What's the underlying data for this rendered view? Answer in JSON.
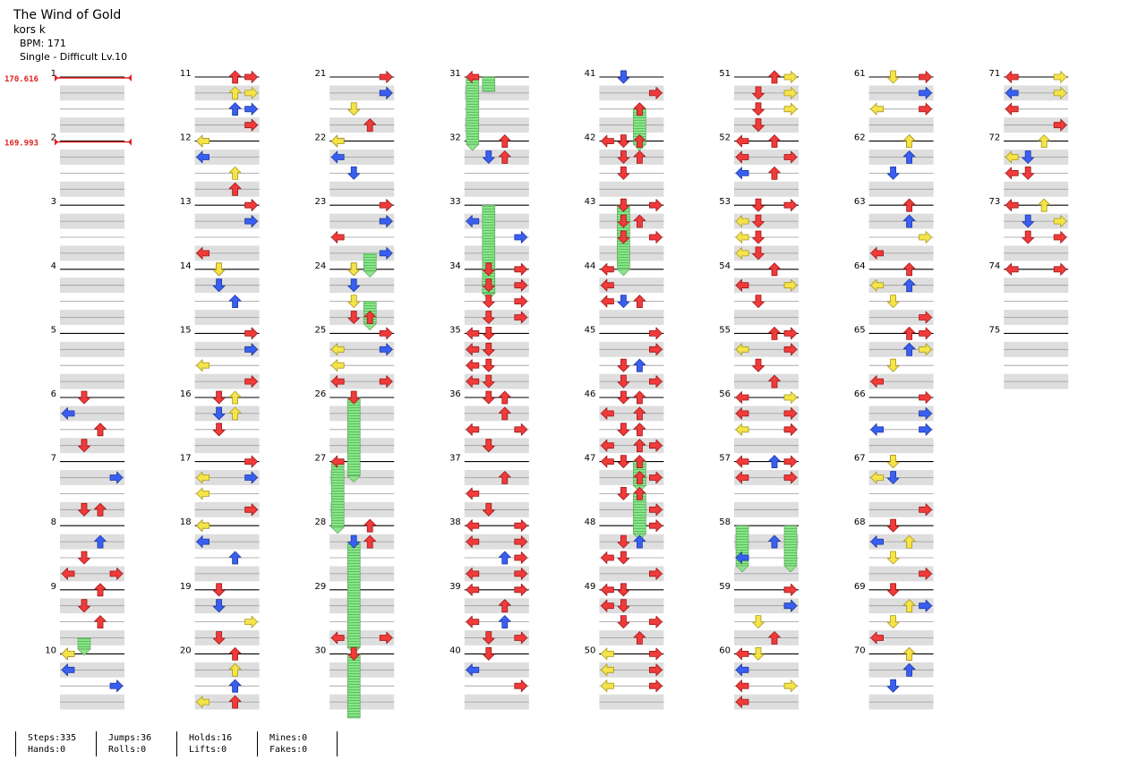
{
  "song": {
    "title": "The Wind of Gold",
    "artist": "kors k",
    "bpm_label": "BPM: 171",
    "difficulty_label": "Single - Difficult Lv.10"
  },
  "bpm_markers": [
    {
      "measure": 1,
      "label": "170.616"
    },
    {
      "measure": 2,
      "label": "169.993"
    }
  ],
  "measures": {
    "count": 75,
    "per_column": 10,
    "rows_per_measure": 4
  },
  "colors": {
    "quarter": "#ef3b3b",
    "eighth": "#3a5ff0",
    "sixteenth": "#f4e44a",
    "hold": "#7ee07e",
    "bpm": "#dd2222",
    "row_shade": "#dedede"
  },
  "notes": [
    [
      6,
      0,
      1,
      "q"
    ],
    [
      6,
      1,
      0,
      "e"
    ],
    [
      6,
      2,
      2,
      "q"
    ],
    [
      6,
      3,
      1,
      "q"
    ],
    [
      7,
      1,
      3,
      "e"
    ],
    [
      7,
      3,
      1,
      "q"
    ],
    [
      7,
      3,
      2,
      "q"
    ],
    [
      8,
      1,
      2,
      "e"
    ],
    [
      8,
      2,
      1,
      "q"
    ],
    [
      8,
      3,
      0,
      "q"
    ],
    [
      8,
      3,
      3,
      "q"
    ],
    [
      9,
      0,
      2,
      "q"
    ],
    [
      9,
      1,
      1,
      "q"
    ],
    [
      9,
      2,
      2,
      "q"
    ],
    [
      10,
      0,
      0,
      "q"
    ],
    [
      10,
      0,
      0,
      "s"
    ],
    [
      10,
      1,
      0,
      "e"
    ],
    [
      10,
      2,
      3,
      "e"
    ],
    [
      11,
      0,
      2,
      "q"
    ],
    [
      11,
      0,
      3,
      "q"
    ],
    [
      11,
      1,
      2,
      "s"
    ],
    [
      11,
      1,
      3,
      "s"
    ],
    [
      11,
      2,
      2,
      "e"
    ],
    [
      11,
      2,
      3,
      "e"
    ],
    [
      11,
      3,
      3,
      "q"
    ],
    [
      12,
      0,
      0,
      "q"
    ],
    [
      12,
      0,
      0,
      "s"
    ],
    [
      12,
      1,
      0,
      "e"
    ],
    [
      12,
      2,
      2,
      "s"
    ],
    [
      12,
      3,
      2,
      "q"
    ],
    [
      13,
      0,
      3,
      "q"
    ],
    [
      13,
      1,
      3,
      "s"
    ],
    [
      13,
      1,
      3,
      "e"
    ],
    [
      13,
      3,
      0,
      "s"
    ],
    [
      13,
      3,
      0,
      "q"
    ],
    [
      14,
      0,
      1,
      "q"
    ],
    [
      14,
      0,
      1,
      "s"
    ],
    [
      14,
      1,
      1,
      "e"
    ],
    [
      14,
      2,
      2,
      "e"
    ],
    [
      15,
      0,
      3,
      "q"
    ],
    [
      15,
      1,
      3,
      "s"
    ],
    [
      15,
      1,
      3,
      "e"
    ],
    [
      15,
      2,
      0,
      "s"
    ],
    [
      15,
      3,
      3,
      "q"
    ],
    [
      16,
      0,
      1,
      "q"
    ],
    [
      16,
      0,
      2,
      "s"
    ],
    [
      16,
      1,
      1,
      "e"
    ],
    [
      16,
      1,
      2,
      "s"
    ],
    [
      16,
      2,
      1,
      "q"
    ],
    [
      17,
      0,
      3,
      "q"
    ],
    [
      17,
      1,
      0,
      "s"
    ],
    [
      17,
      1,
      3,
      "e"
    ],
    [
      17,
      2,
      0,
      "s"
    ],
    [
      17,
      3,
      3,
      "q"
    ],
    [
      18,
      0,
      0,
      "q"
    ],
    [
      18,
      0,
      0,
      "s"
    ],
    [
      18,
      1,
      0,
      "e"
    ],
    [
      18,
      2,
      2,
      "e"
    ],
    [
      19,
      0,
      1,
      "q"
    ],
    [
      19,
      1,
      1,
      "s"
    ],
    [
      19,
      1,
      1,
      "e"
    ],
    [
      19,
      2,
      3,
      "s"
    ],
    [
      19,
      3,
      1,
      "q"
    ],
    [
      20,
      0,
      2,
      "q"
    ],
    [
      20,
      1,
      2,
      "s"
    ],
    [
      20,
      2,
      2,
      "e"
    ],
    [
      20,
      3,
      0,
      "s"
    ],
    [
      20,
      3,
      2,
      "q"
    ],
    [
      21,
      0,
      3,
      "q"
    ],
    [
      21,
      1,
      3,
      "s"
    ],
    [
      21,
      1,
      3,
      "e"
    ],
    [
      21,
      2,
      1,
      "s"
    ],
    [
      21,
      3,
      2,
      "q"
    ],
    [
      22,
      0,
      0,
      "q"
    ],
    [
      22,
      0,
      0,
      "s"
    ],
    [
      22,
      1,
      0,
      "e"
    ],
    [
      22,
      2,
      1,
      "e"
    ],
    [
      23,
      0,
      3,
      "q"
    ],
    [
      23,
      1,
      3,
      "s"
    ],
    [
      23,
      1,
      3,
      "e"
    ],
    [
      23,
      2,
      0,
      "q"
    ],
    [
      23,
      3,
      3,
      "e"
    ],
    [
      24,
      0,
      1,
      "q"
    ],
    [
      24,
      0,
      1,
      "s"
    ],
    [
      24,
      1,
      1,
      "e"
    ],
    [
      24,
      2,
      1,
      "s"
    ],
    [
      24,
      3,
      1,
      "q"
    ],
    [
      24,
      3,
      2,
      "q"
    ],
    [
      25,
      0,
      3,
      "q"
    ],
    [
      25,
      1,
      0,
      "s"
    ],
    [
      25,
      1,
      3,
      "e"
    ],
    [
      25,
      2,
      0,
      "s"
    ],
    [
      25,
      3,
      0,
      "q"
    ],
    [
      25,
      3,
      3,
      "q"
    ],
    [
      26,
      0,
      1,
      "q"
    ],
    [
      27,
      0,
      0,
      "q"
    ],
    [
      28,
      0,
      2,
      "q"
    ],
    [
      28,
      1,
      2,
      "q"
    ],
    [
      28,
      1,
      1,
      "e"
    ],
    [
      29,
      3,
      3,
      "q"
    ],
    [
      29,
      3,
      0,
      "q"
    ],
    [
      30,
      0,
      1,
      "q"
    ],
    [
      31,
      0,
      0,
      "q"
    ],
    [
      32,
      0,
      2,
      "q"
    ],
    [
      32,
      1,
      2,
      "q"
    ],
    [
      32,
      1,
      1,
      "e"
    ],
    [
      33,
      1,
      0,
      "e"
    ],
    [
      33,
      2,
      3,
      "e"
    ],
    [
      34,
      0,
      1,
      "q"
    ],
    [
      34,
      0,
      3,
      "q"
    ],
    [
      34,
      1,
      1,
      "q"
    ],
    [
      34,
      1,
      3,
      "q"
    ],
    [
      34,
      2,
      1,
      "q"
    ],
    [
      34,
      2,
      3,
      "q"
    ],
    [
      34,
      3,
      1,
      "q"
    ],
    [
      34,
      3,
      3,
      "q"
    ],
    [
      35,
      0,
      0,
      "q"
    ],
    [
      35,
      0,
      1,
      "q"
    ],
    [
      35,
      1,
      0,
      "q"
    ],
    [
      35,
      1,
      1,
      "q"
    ],
    [
      35,
      2,
      0,
      "q"
    ],
    [
      35,
      2,
      1,
      "q"
    ],
    [
      35,
      3,
      0,
      "q"
    ],
    [
      35,
      3,
      1,
      "q"
    ],
    [
      36,
      0,
      1,
      "q"
    ],
    [
      36,
      0,
      2,
      "q"
    ],
    [
      36,
      1,
      2,
      "q"
    ],
    [
      36,
      2,
      0,
      "q"
    ],
    [
      36,
      2,
      3,
      "q"
    ],
    [
      36,
      3,
      1,
      "q"
    ],
    [
      37,
      1,
      2,
      "q"
    ],
    [
      37,
      2,
      0,
      "q"
    ],
    [
      37,
      3,
      1,
      "q"
    ],
    [
      38,
      0,
      0,
      "q"
    ],
    [
      38,
      0,
      3,
      "q"
    ],
    [
      38,
      1,
      0,
      "q"
    ],
    [
      38,
      1,
      3,
      "q"
    ],
    [
      38,
      2,
      2,
      "e"
    ],
    [
      38,
      2,
      3,
      "q"
    ],
    [
      38,
      3,
      0,
      "q"
    ],
    [
      38,
      3,
      3,
      "q"
    ],
    [
      39,
      0,
      0,
      "q"
    ],
    [
      39,
      0,
      3,
      "q"
    ],
    [
      39,
      1,
      2,
      "q"
    ],
    [
      39,
      2,
      0,
      "q"
    ],
    [
      39,
      2,
      2,
      "e"
    ],
    [
      39,
      3,
      1,
      "q"
    ],
    [
      39,
      3,
      3,
      "q"
    ],
    [
      40,
      0,
      1,
      "q"
    ],
    [
      40,
      1,
      0,
      "e"
    ],
    [
      40,
      2,
      3,
      "q"
    ],
    [
      41,
      0,
      1,
      "q"
    ],
    [
      41,
      0,
      1,
      "e"
    ],
    [
      41,
      1,
      3,
      "q"
    ],
    [
      41,
      2,
      2,
      "q"
    ],
    [
      42,
      0,
      0,
      "q"
    ],
    [
      42,
      0,
      1,
      "q"
    ],
    [
      42,
      0,
      2,
      "q"
    ],
    [
      42,
      1,
      1,
      "q"
    ],
    [
      42,
      1,
      2,
      "q"
    ],
    [
      42,
      2,
      1,
      "q"
    ],
    [
      43,
      0,
      1,
      "q"
    ],
    [
      43,
      0,
      3,
      "q"
    ],
    [
      43,
      1,
      1,
      "q"
    ],
    [
      43,
      1,
      2,
      "q"
    ],
    [
      43,
      2,
      1,
      "q"
    ],
    [
      43,
      2,
      3,
      "q"
    ],
    [
      44,
      0,
      0,
      "q"
    ],
    [
      44,
      1,
      0,
      "q"
    ],
    [
      44,
      2,
      0,
      "q"
    ],
    [
      44,
      2,
      1,
      "e"
    ],
    [
      44,
      2,
      2,
      "q"
    ],
    [
      45,
      0,
      3,
      "q"
    ],
    [
      45,
      1,
      3,
      "q"
    ],
    [
      45,
      2,
      1,
      "q"
    ],
    [
      45,
      2,
      2,
      "e"
    ],
    [
      45,
      3,
      1,
      "q"
    ],
    [
      45,
      3,
      3,
      "q"
    ],
    [
      46,
      0,
      1,
      "q"
    ],
    [
      46,
      0,
      2,
      "q"
    ],
    [
      46,
      1,
      0,
      "q"
    ],
    [
      46,
      1,
      2,
      "q"
    ],
    [
      46,
      2,
      1,
      "q"
    ],
    [
      46,
      2,
      2,
      "q"
    ],
    [
      46,
      3,
      0,
      "q"
    ],
    [
      46,
      3,
      2,
      "q"
    ],
    [
      46,
      3,
      3,
      "q"
    ],
    [
      47,
      0,
      0,
      "q"
    ],
    [
      47,
      0,
      1,
      "q"
    ],
    [
      47,
      0,
      2,
      "q"
    ],
    [
      47,
      1,
      2,
      "q"
    ],
    [
      47,
      1,
      3,
      "q"
    ],
    [
      47,
      2,
      1,
      "q"
    ],
    [
      47,
      2,
      2,
      "q"
    ],
    [
      47,
      3,
      3,
      "q"
    ],
    [
      48,
      0,
      3,
      "q"
    ],
    [
      48,
      1,
      1,
      "q"
    ],
    [
      48,
      1,
      2,
      "e"
    ],
    [
      48,
      2,
      0,
      "q"
    ],
    [
      48,
      2,
      1,
      "q"
    ],
    [
      48,
      3,
      3,
      "q"
    ],
    [
      49,
      0,
      0,
      "q"
    ],
    [
      49,
      0,
      1,
      "q"
    ],
    [
      49,
      1,
      0,
      "q"
    ],
    [
      49,
      1,
      1,
      "q"
    ],
    [
      49,
      2,
      1,
      "q"
    ],
    [
      49,
      2,
      3,
      "q"
    ],
    [
      49,
      3,
      2,
      "q"
    ],
    [
      50,
      0,
      0,
      "s"
    ],
    [
      50,
      0,
      3,
      "q"
    ],
    [
      50,
      1,
      0,
      "s"
    ],
    [
      50,
      1,
      3,
      "q"
    ],
    [
      50,
      2,
      0,
      "s"
    ],
    [
      50,
      2,
      3,
      "q"
    ],
    [
      51,
      0,
      2,
      "q"
    ],
    [
      51,
      0,
      3,
      "s"
    ],
    [
      51,
      1,
      1,
      "q"
    ],
    [
      51,
      1,
      3,
      "s"
    ],
    [
      51,
      2,
      1,
      "q"
    ],
    [
      51,
      2,
      3,
      "s"
    ],
    [
      51,
      3,
      1,
      "q"
    ],
    [
      52,
      0,
      0,
      "q"
    ],
    [
      52,
      0,
      2,
      "q"
    ],
    [
      52,
      1,
      0,
      "q"
    ],
    [
      52,
      1,
      3,
      "q"
    ],
    [
      52,
      2,
      0,
      "e"
    ],
    [
      52,
      2,
      2,
      "q"
    ],
    [
      53,
      0,
      1,
      "q"
    ],
    [
      53,
      0,
      3,
      "q"
    ],
    [
      53,
      1,
      0,
      "s"
    ],
    [
      53,
      1,
      1,
      "q"
    ],
    [
      53,
      2,
      0,
      "s"
    ],
    [
      53,
      2,
      1,
      "q"
    ],
    [
      53,
      3,
      0,
      "s"
    ],
    [
      53,
      3,
      1,
      "q"
    ],
    [
      54,
      0,
      2,
      "q"
    ],
    [
      54,
      1,
      0,
      "q"
    ],
    [
      54,
      1,
      3,
      "s"
    ],
    [
      54,
      2,
      1,
      "q"
    ],
    [
      55,
      0,
      2,
      "q"
    ],
    [
      55,
      0,
      3,
      "q"
    ],
    [
      55,
      1,
      0,
      "s"
    ],
    [
      55,
      1,
      3,
      "q"
    ],
    [
      55,
      2,
      1,
      "q"
    ],
    [
      55,
      3,
      2,
      "q"
    ],
    [
      56,
      0,
      0,
      "q"
    ],
    [
      56,
      0,
      3,
      "s"
    ],
    [
      56,
      1,
      0,
      "q"
    ],
    [
      56,
      1,
      3,
      "q"
    ],
    [
      56,
      2,
      0,
      "s"
    ],
    [
      56,
      2,
      3,
      "q"
    ],
    [
      57,
      0,
      0,
      "q"
    ],
    [
      57,
      0,
      2,
      "e"
    ],
    [
      57,
      0,
      3,
      "q"
    ],
    [
      57,
      1,
      0,
      "q"
    ],
    [
      57,
      1,
      3,
      "q"
    ],
    [
      58,
      1,
      2,
      "s"
    ],
    [
      58,
      1,
      2,
      "e"
    ],
    [
      58,
      2,
      0,
      "e"
    ],
    [
      59,
      0,
      3,
      "q"
    ],
    [
      59,
      1,
      3,
      "s"
    ],
    [
      59,
      1,
      3,
      "e"
    ],
    [
      59,
      2,
      1,
      "s"
    ],
    [
      59,
      3,
      2,
      "q"
    ],
    [
      60,
      0,
      0,
      "q"
    ],
    [
      60,
      0,
      1,
      "s"
    ],
    [
      60,
      1,
      0,
      "e"
    ],
    [
      60,
      2,
      0,
      "q"
    ],
    [
      60,
      2,
      3,
      "s"
    ],
    [
      60,
      3,
      0,
      "q"
    ],
    [
      61,
      0,
      1,
      "s"
    ],
    [
      61,
      0,
      3,
      "q"
    ],
    [
      61,
      1,
      3,
      "e"
    ],
    [
      61,
      2,
      0,
      "s"
    ],
    [
      61,
      2,
      3,
      "q"
    ],
    [
      62,
      0,
      2,
      "q"
    ],
    [
      62,
      0,
      2,
      "s"
    ],
    [
      62,
      1,
      2,
      "e"
    ],
    [
      62,
      2,
      1,
      "e"
    ],
    [
      63,
      0,
      2,
      "q"
    ],
    [
      63,
      1,
      2,
      "s"
    ],
    [
      63,
      1,
      2,
      "e"
    ],
    [
      63,
      2,
      3,
      "s"
    ],
    [
      63,
      3,
      0,
      "q"
    ],
    [
      64,
      0,
      2,
      "q"
    ],
    [
      64,
      1,
      0,
      "s"
    ],
    [
      64,
      1,
      2,
      "e"
    ],
    [
      64,
      2,
      1,
      "s"
    ],
    [
      64,
      3,
      3,
      "q"
    ],
    [
      65,
      0,
      2,
      "q"
    ],
    [
      65,
      0,
      3,
      "q"
    ],
    [
      65,
      1,
      2,
      "e"
    ],
    [
      65,
      1,
      3,
      "s"
    ],
    [
      65,
      2,
      1,
      "s"
    ],
    [
      65,
      3,
      0,
      "q"
    ],
    [
      66,
      0,
      3,
      "q"
    ],
    [
      66,
      1,
      3,
      "s"
    ],
    [
      66,
      1,
      3,
      "e"
    ],
    [
      66,
      2,
      0,
      "e"
    ],
    [
      66,
      2,
      3,
      "e"
    ],
    [
      67,
      0,
      1,
      "q"
    ],
    [
      67,
      0,
      1,
      "s"
    ],
    [
      67,
      1,
      1,
      "e"
    ],
    [
      67,
      1,
      0,
      "s"
    ],
    [
      67,
      3,
      3,
      "q"
    ],
    [
      68,
      0,
      1,
      "q"
    ],
    [
      68,
      1,
      2,
      "s"
    ],
    [
      68,
      1,
      0,
      "e"
    ],
    [
      68,
      2,
      1,
      "s"
    ],
    [
      68,
      3,
      3,
      "q"
    ],
    [
      69,
      0,
      1,
      "q"
    ],
    [
      69,
      1,
      2,
      "s"
    ],
    [
      69,
      1,
      3,
      "e"
    ],
    [
      69,
      2,
      1,
      "s"
    ],
    [
      69,
      3,
      0,
      "q"
    ],
    [
      70,
      0,
      2,
      "q"
    ],
    [
      70,
      0,
      2,
      "s"
    ],
    [
      70,
      1,
      2,
      "e"
    ],
    [
      70,
      2,
      1,
      "e"
    ],
    [
      71,
      0,
      0,
      "q"
    ],
    [
      71,
      0,
      3,
      "s"
    ],
    [
      71,
      1,
      0,
      "e"
    ],
    [
      71,
      1,
      3,
      "s"
    ],
    [
      71,
      2,
      0,
      "q"
    ],
    [
      71,
      3,
      3,
      "q"
    ],
    [
      72,
      0,
      2,
      "s"
    ],
    [
      72,
      1,
      1,
      "e"
    ],
    [
      72,
      1,
      0,
      "s"
    ],
    [
      72,
      2,
      0,
      "q"
    ],
    [
      72,
      2,
      1,
      "q"
    ],
    [
      73,
      0,
      0,
      "q"
    ],
    [
      73,
      0,
      2,
      "s"
    ],
    [
      73,
      1,
      1,
      "e"
    ],
    [
      73,
      1,
      3,
      "s"
    ],
    [
      73,
      2,
      1,
      "q"
    ],
    [
      73,
      2,
      3,
      "q"
    ],
    [
      74,
      0,
      0,
      "q"
    ],
    [
      74,
      0,
      3,
      "q"
    ]
  ],
  "holds": [
    [
      9,
      3,
      1,
      9,
      3.7
    ],
    [
      23,
      3,
      2,
      24,
      0.1
    ],
    [
      24,
      2,
      2,
      24,
      3.4
    ],
    [
      26,
      0,
      1,
      27,
      0.9
    ],
    [
      27,
      0,
      0,
      28,
      0.1
    ],
    [
      28,
      1,
      1,
      29,
      3.6
    ],
    [
      30,
      0,
      1,
      31,
      0.9
    ],
    [
      31,
      0,
      0,
      32,
      0.2
    ],
    [
      33,
      0,
      1,
      34,
      1.5
    ],
    [
      41,
      2,
      2,
      42,
      0.2
    ],
    [
      43,
      0,
      1,
      43,
      1.9
    ],
    [
      43,
      2,
      1,
      44,
      0.0
    ],
    [
      47,
      0,
      2,
      47,
      1.5
    ],
    [
      47,
      2,
      2,
      48,
      0.5
    ],
    [
      58,
      0,
      0,
      58,
      2.5
    ],
    [
      58,
      0,
      3,
      58,
      2.5
    ]
  ],
  "stats": [
    {
      "a": "Steps:335",
      "b": "Hands:0"
    },
    {
      "a": "Jumps:36",
      "b": "Rolls:0"
    },
    {
      "a": "Holds:16",
      "b": "Lifts:0"
    },
    {
      "a": "Mines:0",
      "b": "Fakes:0"
    }
  ]
}
